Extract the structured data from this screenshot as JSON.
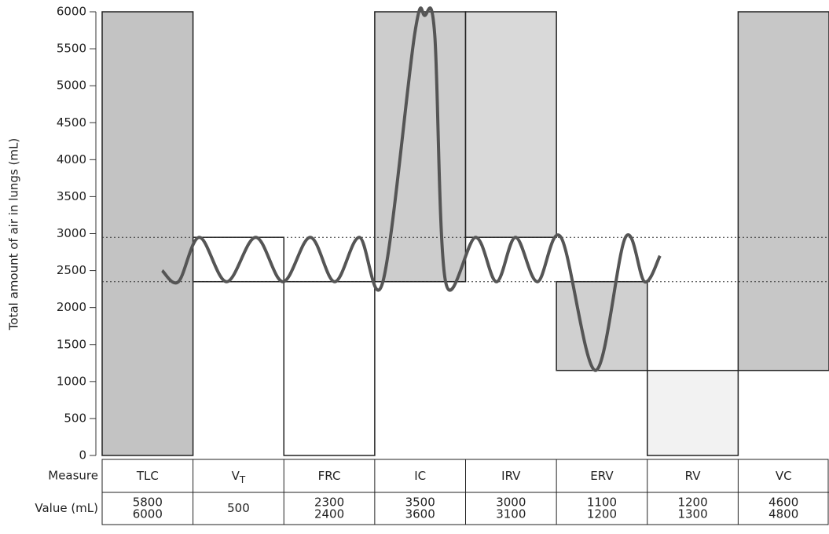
{
  "chart_data": {
    "type": "spirogram",
    "ylabel": "Total amount of air in lungs (mL)",
    "ylim": [
      0,
      6000
    ],
    "yticks": [
      0,
      500,
      1000,
      1500,
      2000,
      2500,
      3000,
      3500,
      4000,
      4500,
      5000,
      5500,
      6000
    ],
    "reference_lines": [
      2950,
      2350
    ],
    "row_labels": [
      "Measure",
      "Value (mL)"
    ],
    "columns": [
      {
        "label": "TLC",
        "low": 0,
        "high": 6000,
        "color": "#b9b9b9",
        "values": [
          5800,
          6000
        ]
      },
      {
        "label": "V",
        "sub": "T",
        "low": 2350,
        "high": 2950,
        "color": "#ffffff",
        "values": [
          500
        ]
      },
      {
        "label": "FRC",
        "low": 0,
        "high": 2350,
        "color": "#ffffff",
        "values": [
          2300,
          2400
        ]
      },
      {
        "label": "IC",
        "low": 2350,
        "high": 6000,
        "color": "#c4c4c4",
        "values": [
          3500,
          3600
        ]
      },
      {
        "label": "IRV",
        "low": 2950,
        "high": 6000,
        "color": "#d2d2d2",
        "values": [
          3000,
          3100
        ]
      },
      {
        "label": "ERV",
        "low": 1150,
        "high": 2350,
        "color": "#c8c8c8",
        "values": [
          1100,
          1200
        ]
      },
      {
        "label": "RV",
        "low": 0,
        "high": 1150,
        "color": "#f0f0f0",
        "values": [
          1200,
          1300
        ]
      },
      {
        "label": "VC",
        "low": 1150,
        "high": 6000,
        "color": "#bdbdbd",
        "values": [
          4600,
          4800
        ]
      }
    ],
    "trace": {
      "color": "#555555",
      "x": [
        0.66,
        0.84,
        1.07,
        1.37,
        1.69,
        1.99,
        2.29,
        2.56,
        2.83,
        3.09,
        3.44,
        3.55,
        3.66,
        3.78,
        4.11,
        4.34,
        4.55,
        4.79,
        5.05,
        5.43,
        5.76,
        5.97,
        6.14
      ],
      "y": [
        2500,
        2350,
        2950,
        2350,
        2950,
        2350,
        2950,
        2350,
        2950,
        2350,
        5700,
        5950,
        5700,
        2350,
        2950,
        2350,
        2950,
        2350,
        2950,
        1150,
        2950,
        2350,
        2700
      ]
    }
  }
}
